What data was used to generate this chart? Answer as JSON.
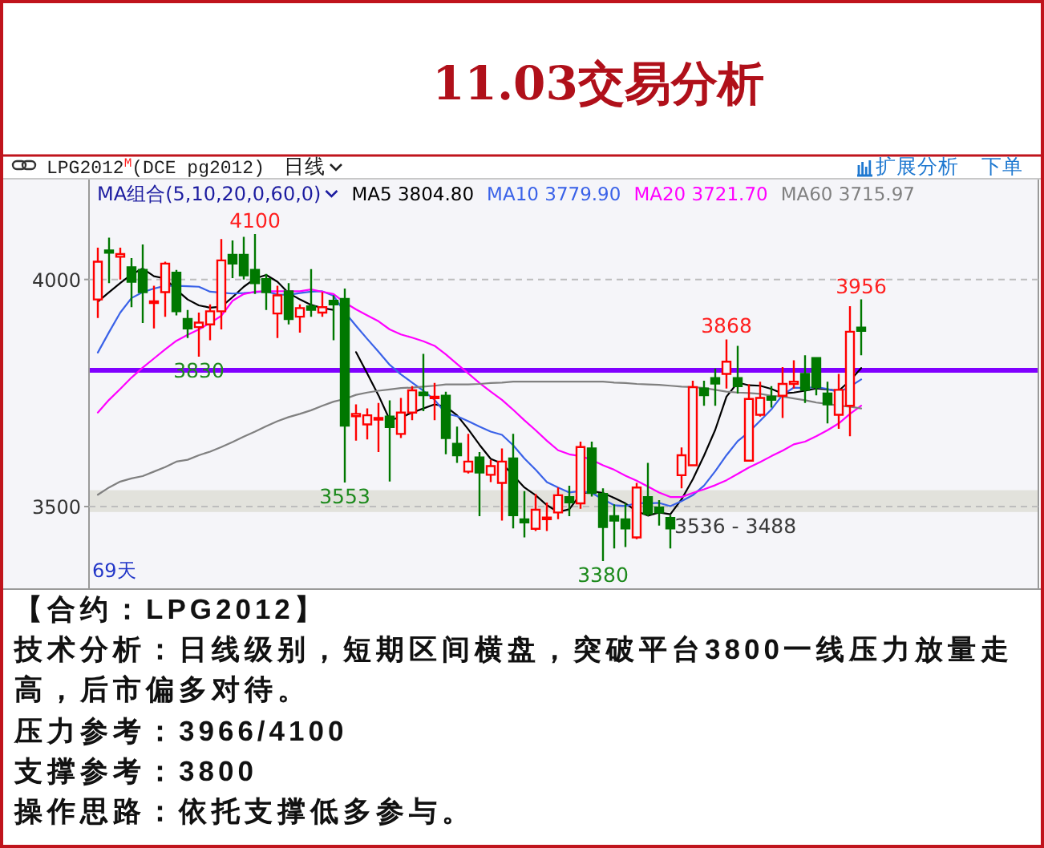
{
  "chart_data": {
    "type": "candlestick",
    "title": "11.03交易分析",
    "subtitle": "LPG2012$^{M}$(DCE pg2012)",
    "legend_title": "MA组合(5,10,20,0,60,0)",
    "legend": "top",
    "categories": [
      null,
      null,
      null,
      null,
      null,
      null,
      null,
      null,
      null,
      null,
      null,
      null,
      null,
      null,
      null,
      null,
      null,
      null,
      null,
      null,
      null,
      null,
      null,
      null,
      null,
      null,
      null,
      null,
      null,
      null,
      null,
      null,
      null,
      null,
      null,
      null,
      null,
      null,
      null,
      null,
      null,
      null,
      null,
      null,
      null,
      null,
      null,
      null,
      null,
      null,
      null,
      null,
      null,
      null,
      null,
      null,
      null,
      null,
      null,
      null,
      null,
      null,
      null,
      null,
      null,
      null,
      null,
      null,
      null
    ],
    "ohlc": [
      [
        3956,
        4070,
        3915,
        4039
      ],
      [
        4064,
        4092,
        3992,
        4059
      ],
      [
        4050,
        4070,
        4000,
        4056
      ],
      [
        4027,
        4047,
        3939,
        3995
      ],
      [
        4021,
        4077,
        3904,
        3972
      ],
      [
        3948,
        3986,
        3892,
        3952
      ],
      [
        3972,
        4039,
        3918,
        4035
      ],
      [
        4015,
        4021,
        3921,
        3930
      ],
      [
        3913,
        3933,
        3871,
        3892
      ],
      [
        3895,
        3927,
        3830,
        3905
      ],
      [
        3901,
        3945,
        3866,
        3930
      ],
      [
        3930,
        4089,
        3890,
        4042
      ],
      [
        4054,
        4086,
        4003,
        4035
      ],
      [
        4054,
        4094,
        4000,
        4009
      ],
      [
        4021,
        4100,
        3968,
        3992
      ],
      [
        4001,
        4012,
        3933,
        3972
      ],
      [
        3925,
        3986,
        3871,
        3965
      ],
      [
        3974,
        3992,
        3901,
        3913
      ],
      [
        3918,
        3945,
        3883,
        3937
      ],
      [
        3941,
        4023,
        3918,
        3933
      ],
      [
        3927,
        3972,
        3918,
        3939
      ],
      [
        3953,
        3965,
        3866,
        3945
      ],
      [
        3957,
        3980,
        3553,
        3678
      ],
      [
        3699,
        3725,
        3645,
        3704
      ],
      [
        3681,
        3716,
        3648,
        3701
      ],
      [
        3692,
        3728,
        3620,
        3695
      ],
      [
        3698,
        3734,
        3555,
        3675
      ],
      [
        3660,
        3739,
        3651,
        3707
      ],
      [
        3707,
        3765,
        3690,
        3756
      ],
      [
        3751,
        3836,
        3710,
        3745
      ],
      [
        3739,
        3772,
        3690,
        3742
      ],
      [
        3744,
        3753,
        3615,
        3651
      ],
      [
        3638,
        3676,
        3596,
        3613
      ],
      [
        3577,
        3660,
        3573,
        3599
      ],
      [
        3608,
        3620,
        3479,
        3575
      ],
      [
        3570,
        3603,
        3554,
        3589
      ],
      [
        3552,
        3628,
        3469,
        3599
      ],
      [
        3606,
        3660,
        3452,
        3481
      ],
      [
        3472,
        3534,
        3432,
        3465
      ],
      [
        3451,
        3528,
        3446,
        3493
      ],
      [
        3472,
        3509,
        3446,
        3476
      ],
      [
        3487,
        3542,
        3472,
        3525
      ],
      [
        3521,
        3546,
        3479,
        3509
      ],
      [
        3507,
        3643,
        3495,
        3631
      ],
      [
        3628,
        3643,
        3522,
        3530
      ],
      [
        3528,
        3540,
        3380,
        3455
      ],
      [
        3479,
        3505,
        3408,
        3469
      ],
      [
        3472,
        3507,
        3411,
        3452
      ],
      [
        3432,
        3552,
        3428,
        3542
      ],
      [
        3521,
        3596,
        3479,
        3484
      ],
      [
        3498,
        3514,
        3458,
        3487
      ],
      [
        3475,
        3481,
        3408,
        3452
      ],
      [
        3569,
        3630,
        3540,
        3613
      ],
      [
        3591,
        3777,
        3591,
        3763
      ],
      [
        3760,
        3777,
        3722,
        3745
      ],
      [
        3783,
        3804,
        3722,
        3771
      ],
      [
        3792,
        3868,
        3760,
        3819
      ],
      [
        3783,
        3854,
        3749,
        3765
      ],
      [
        3601,
        3769,
        3601,
        3737
      ],
      [
        3702,
        3775,
        3698,
        3739
      ],
      [
        3742,
        3765,
        3718,
        3735
      ],
      [
        3744,
        3807,
        3695,
        3770
      ],
      [
        3770,
        3822,
        3760,
        3775
      ],
      [
        3792,
        3833,
        3728,
        3757
      ],
      [
        3827,
        3827,
        3745,
        3763
      ],
      [
        3749,
        3775,
        3683,
        3725
      ],
      [
        3702,
        3792,
        3671,
        3757
      ],
      [
        3722,
        3941,
        3655,
        3885
      ],
      [
        3894,
        3956,
        3833,
        3887
      ]
    ],
    "colors": [
      "#ff0000",
      "#007800",
      "#ff0000",
      "#007800",
      "#007800",
      "#ff0000",
      "#ff0000",
      "#007800",
      "#007800",
      "#ff0000",
      "#ff0000",
      "#ff0000",
      "#007800",
      "#007800",
      "#007800",
      "#007800",
      "#ff0000",
      "#007800",
      "#ff0000",
      "#007800",
      "#ff0000",
      "#007800",
      "#007800",
      "#ff0000",
      "#ff0000",
      "#ff0000",
      "#007800",
      "#ff0000",
      "#ff0000",
      "#007800",
      "#ff0000",
      "#007800",
      "#007800",
      "#ff0000",
      "#007800",
      "#ff0000",
      "#ff0000",
      "#007800",
      "#007800",
      "#ff0000",
      "#ff0000",
      "#ff0000",
      "#007800",
      "#ff0000",
      "#007800",
      "#007800",
      "#007800",
      "#007800",
      "#ff0000",
      "#007800",
      "#007800",
      "#007800",
      "#ff0000",
      "#ff0000",
      "#007800",
      "#007800",
      "#ff0000",
      "#007800",
      "#ff0000",
      "#ff0000",
      "#007800",
      "#ff0000",
      "#ff0000",
      "#007800",
      "#007800",
      "#007800",
      "#ff0000",
      "#ff0000",
      "#007800"
    ],
    "series": [
      {
        "name": "MA5 3804.80",
        "type": "line",
        "color": "#000000",
        "values": [
          3951,
          3972,
          3992,
          4011,
          4024,
          4007,
          4002,
          3977,
          3956,
          3943,
          3938,
          3940,
          3961,
          3984,
          4002,
          4010,
          3995,
          3970,
          3956,
          3944,
          3937,
          3933,
          null,
          3840,
          3793,
          3745,
          3691,
          3696,
          3707,
          3716,
          3725,
          3720,
          3701,
          3670,
          3636,
          3605,
          3595,
          3569,
          3542,
          3525,
          3503,
          3488,
          3494,
          3527,
          3534,
          3530,
          3519,
          3507,
          3490,
          3480,
          3487,
          3483,
          3516,
          3560,
          3612,
          3669,
          3742,
          3773,
          3767,
          3766,
          3759,
          3749,
          3751,
          3755,
          3760,
          3758,
          3755,
          3777,
          3805
        ]
      },
      {
        "name": "MA10 3779.90",
        "type": "line",
        "color": "#3a62e8",
        "values": [
          3839,
          3884,
          3927,
          3959,
          3972,
          3980,
          3986,
          3986,
          3985,
          3984,
          3973,
          3971,
          3969,
          3970,
          3972,
          3974,
          3967,
          3966,
          3970,
          3973,
          3974,
          3964,
          3928,
          3898,
          3869,
          3841,
          3812,
          3791,
          3773,
          3755,
          3735,
          3705,
          3699,
          3688,
          3676,
          3665,
          3658,
          3635,
          3606,
          3581,
          3554,
          3542,
          3531,
          3534,
          3530,
          3516,
          3503,
          3501,
          3508,
          3507,
          3508,
          3501,
          3512,
          3525,
          3546,
          3578,
          3613,
          3644,
          3664,
          3689,
          3714,
          3746,
          3762,
          3761,
          3763,
          3759,
          3752,
          3764,
          3780
        ]
      },
      {
        "name": "MA20 3721.70",
        "type": "line",
        "color": "#ff00ff",
        "values": [
          3707,
          3735,
          3759,
          3784,
          3806,
          3826,
          3846,
          3865,
          3878,
          3890,
          3904,
          3920,
          3953,
          3968,
          3973,
          3974,
          3974,
          3974,
          3974,
          3978,
          3973,
          3968,
          3949,
          3934,
          3921,
          3908,
          3890,
          3879,
          3872,
          3864,
          3854,
          3835,
          3814,
          3793,
          3772,
          3753,
          3735,
          3713,
          3690,
          3668,
          3645,
          3624,
          3615,
          3611,
          3603,
          3591,
          3581,
          3568,
          3557,
          3544,
          3531,
          3521,
          3521,
          3530,
          3538,
          3547,
          3558,
          3572,
          3586,
          3598,
          3611,
          3623,
          3637,
          3643,
          3655,
          3668,
          3683,
          3704,
          3722
        ]
      },
      {
        "name": "MA60 3715.97",
        "type": "line",
        "color": "#808080",
        "values": [
          3526,
          3542,
          3555,
          3562,
          3567,
          3577,
          3587,
          3599,
          3603,
          3613,
          3621,
          3631,
          3642,
          3654,
          3665,
          3677,
          3688,
          3697,
          3704,
          3712,
          3722,
          3731,
          3737,
          3746,
          3751,
          3755,
          3758,
          3761,
          3762,
          3764,
          3766,
          3769,
          3769,
          3769,
          3770,
          3772,
          3773,
          3775,
          3775,
          3775,
          3775,
          3775,
          3775,
          3775,
          3775,
          3775,
          3773,
          3772,
          3770,
          3769,
          3768,
          3766,
          3764,
          3763,
          3761,
          3757,
          3753,
          3751,
          3750,
          3748,
          3744,
          3742,
          3738,
          3734,
          3729,
          3726,
          3722,
          3720,
          3716
        ]
      }
    ],
    "ylim": [
      3320,
      4220
    ],
    "yticks": [
      3500,
      4000
    ],
    "grid": "y",
    "tick_labels": "y",
    "ref_lines": [
      {
        "axis": "y",
        "value": 3800,
        "color": "#8000ff"
      }
    ],
    "bands": [
      {
        "axis": "y",
        "from": 3488,
        "to": 3536,
        "label": "3536 - 3488",
        "color": "#e2e2dc"
      }
    ],
    "annotations": [
      "日线",
      "扩展分析",
      "下单",
      "69天",
      "【合约：LPG2012】",
      "技术分析：日线级别，短期区间横盘，突破平台3800一线压力放量走高，后市偏多对待。",
      "压力参考：3966/4100",
      "支撑参考：3800",
      "操作思路：依托支撑低多参与。",
      {
        "text": "4100",
        "y": 4100
      },
      {
        "text": "3830",
        "y": 3830
      },
      {
        "text": "3553",
        "y": 3553
      },
      {
        "text": "3380",
        "y": 3380
      },
      {
        "text": "3868",
        "y": 3868
      },
      {
        "text": "3956",
        "y": 3956
      }
    ]
  }
}
